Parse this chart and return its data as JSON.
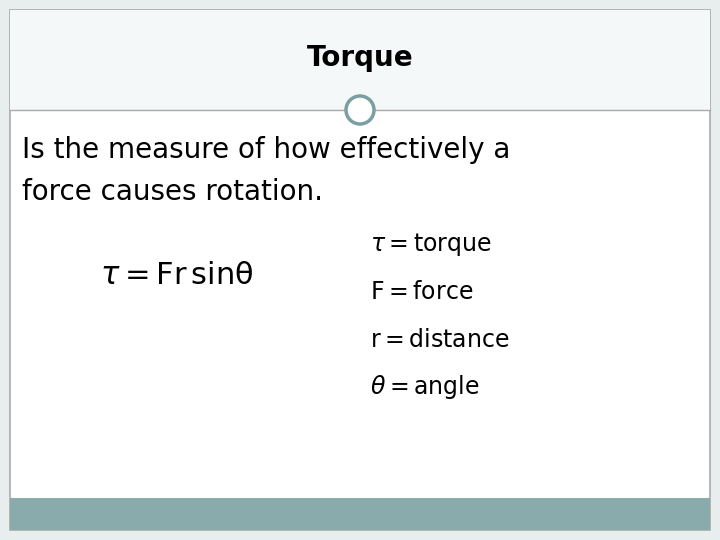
{
  "title": "Torque",
  "description_line1": "Is the measure of how effectively a",
  "description_line2": "force causes rotation.",
  "bg_color": "#ffffff",
  "outer_bg": "#e8eded",
  "border_color": "#aaaaaa",
  "circle_color": "#7a9fA0",
  "title_fontsize": 20,
  "desc_fontsize": 20,
  "formula_fontsize": 20,
  "def_fontsize": 17,
  "footer_color": "#8aabab",
  "title_area_bg": "#f5f8f8"
}
